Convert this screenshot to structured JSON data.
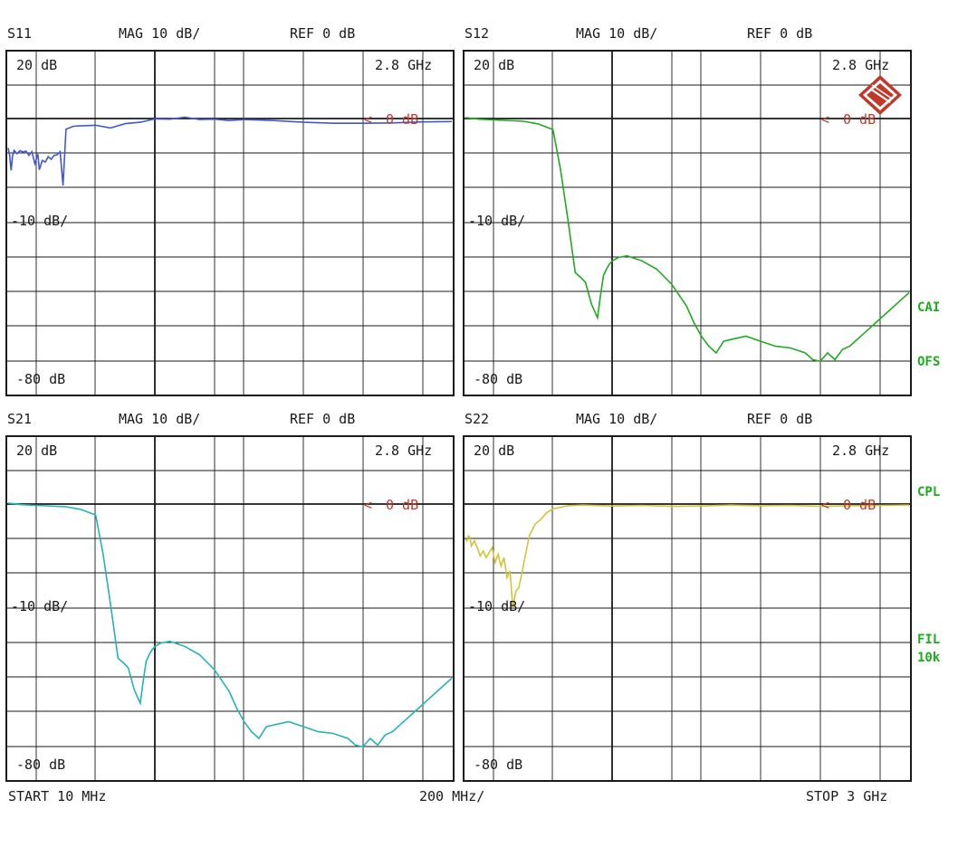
{
  "colors": {
    "background": "#ffffff",
    "grid": "#1a1a1a",
    "reference_marker": "#c0382b",
    "side_annotation": "#1faa1f",
    "logo": "#c0392b"
  },
  "footer": {
    "start": "START  10 MHz",
    "span": "200 MHz/",
    "stop": "STOP 3 GHz"
  },
  "side_annotations": [
    "CAI",
    "OFS",
    "CPL",
    "FIL",
    "10k"
  ],
  "logo": {
    "icon": "rohde-schwarz-logo-icon",
    "text": "RS"
  },
  "chart_data": [
    {
      "type": "line",
      "id": "s11",
      "title": "S11",
      "format": "MAG 10 dB/",
      "reference": "REF 0 dB",
      "top_label": "20 dB",
      "scale_label": "10 dB/",
      "bottom_label": "-80 dB",
      "freq_label": "2.8 GHz",
      "ref_marker": "0 dB",
      "color": "#3f58d2",
      "x_unit": "GHz",
      "xlim": [
        0.01,
        3.0
      ],
      "y_unit": "dB",
      "ylim": [
        -80,
        20
      ],
      "x": [
        0.01,
        0.02,
        0.03,
        0.04,
        0.05,
        0.07,
        0.09,
        0.11,
        0.13,
        0.15,
        0.17,
        0.19,
        0.21,
        0.22,
        0.24,
        0.26,
        0.28,
        0.3,
        0.32,
        0.34,
        0.36,
        0.38,
        0.4,
        0.45,
        0.5,
        0.6,
        0.7,
        0.8,
        0.9,
        1.0,
        1.1,
        1.2,
        1.3,
        1.4,
        1.5,
        1.6,
        1.8,
        2.0,
        2.2,
        2.4,
        2.6,
        2.8,
        3.0
      ],
      "y": [
        -8.8,
        -10.8,
        -15.5,
        -11.0,
        -9.5,
        -10.5,
        -9.6,
        -10.0,
        -9.7,
        -11.0,
        -9.9,
        -13.5,
        -10.6,
        -15.3,
        -12.5,
        -13.0,
        -11.4,
        -12.2,
        -11.0,
        -10.8,
        -9.9,
        -20.0,
        -3.2,
        -2.3,
        -2.2,
        -2.0,
        -2.8,
        -1.5,
        -1.1,
        -0.1,
        -0.2,
        0.4,
        -0.3,
        -0.2,
        -0.6,
        -0.3,
        -0.6,
        -1.1,
        -1.4,
        -1.4,
        -1.3,
        -1.0,
        -0.9
      ]
    },
    {
      "type": "line",
      "id": "s12",
      "title": "S12",
      "format": "MAG 10 dB/",
      "reference": "REF 0 dB",
      "top_label": "20 dB",
      "scale_label": "10 dB/",
      "bottom_label": "-80 dB",
      "freq_label": "2.8 GHz",
      "ref_marker": "0 dB",
      "color": "#1faa1f",
      "x_unit": "GHz",
      "xlim": [
        0.01,
        3.0
      ],
      "y_unit": "dB",
      "ylim": [
        -80,
        20
      ],
      "x": [
        0.01,
        0.1,
        0.2,
        0.4,
        0.5,
        0.6,
        0.65,
        0.7,
        0.75,
        0.8,
        0.82,
        0.86,
        0.9,
        0.92,
        0.94,
        0.96,
        0.98,
        1.0,
        1.04,
        1.1,
        1.2,
        1.3,
        1.4,
        1.5,
        1.55,
        1.6,
        1.65,
        1.7,
        1.75,
        1.8,
        1.9,
        2.0,
        2.1,
        2.2,
        2.3,
        2.35,
        2.4,
        2.45,
        2.5,
        2.55,
        2.6,
        2.7,
        2.8,
        2.9,
        3.0
      ],
      "y": [
        0.3,
        -0.2,
        -0.4,
        -0.8,
        -1.6,
        -3.3,
        -15.0,
        -30.0,
        -46.0,
        -48.0,
        -49.0,
        -55.5,
        -59.5,
        -53.0,
        -47.0,
        -45.0,
        -43.5,
        -42.5,
        -41.5,
        -41.0,
        -42.5,
        -45.0,
        -49.5,
        -56.0,
        -61.0,
        -65.0,
        -68.0,
        -70.0,
        -66.5,
        -66.0,
        -65.0,
        -66.5,
        -68.0,
        -68.5,
        -70.0,
        -72.0,
        -72.5,
        -70.0,
        -72.0,
        -69.0,
        -68.0,
        -64.0,
        -60.0,
        -56.0,
        -52.0
      ]
    },
    {
      "type": "line",
      "id": "s21",
      "title": "S21",
      "format": "MAG 10 dB/",
      "reference": "REF 0 dB",
      "top_label": "20 dB",
      "scale_label": "10 dB/",
      "bottom_label": "-80 dB",
      "freq_label": "2.8 GHz",
      "ref_marker": "0 dB",
      "color": "#22b3b8",
      "x_unit": "GHz",
      "xlim": [
        0.01,
        3.0
      ],
      "y_unit": "dB",
      "ylim": [
        -80,
        20
      ],
      "x": [
        0.01,
        0.1,
        0.2,
        0.4,
        0.5,
        0.6,
        0.65,
        0.7,
        0.75,
        0.8,
        0.82,
        0.86,
        0.9,
        0.92,
        0.94,
        0.96,
        0.98,
        1.0,
        1.04,
        1.1,
        1.2,
        1.3,
        1.4,
        1.5,
        1.55,
        1.6,
        1.65,
        1.7,
        1.75,
        1.8,
        1.9,
        2.0,
        2.1,
        2.2,
        2.3,
        2.35,
        2.4,
        2.45,
        2.5,
        2.55,
        2.6,
        2.7,
        2.8,
        2.9,
        3.0
      ],
      "y": [
        0.3,
        -0.2,
        -0.4,
        -0.8,
        -1.6,
        -3.3,
        -15.0,
        -30.0,
        -46.0,
        -48.0,
        -49.0,
        -55.5,
        -59.5,
        -53.0,
        -47.0,
        -45.0,
        -43.5,
        -42.5,
        -41.5,
        -41.0,
        -42.5,
        -45.0,
        -49.5,
        -56.0,
        -61.0,
        -65.0,
        -68.0,
        -70.0,
        -66.5,
        -66.0,
        -65.0,
        -66.5,
        -68.0,
        -68.5,
        -70.0,
        -72.0,
        -72.5,
        -70.0,
        -72.0,
        -69.0,
        -68.0,
        -64.0,
        -60.0,
        -56.0,
        -52.0
      ]
    },
    {
      "type": "line",
      "id": "s22",
      "title": "S22",
      "format": "MAG 10 dB/",
      "reference": "REF 0 dB",
      "top_label": "20 dB",
      "scale_label": "10 dB/",
      "bottom_label": "-80 dB",
      "freq_label": "2.8 GHz",
      "ref_marker": "0 dB",
      "color": "#d2c33a",
      "x_unit": "GHz",
      "xlim": [
        0.01,
        3.0
      ],
      "y_unit": "dB",
      "ylim": [
        -80,
        20
      ],
      "x": [
        0.01,
        0.02,
        0.03,
        0.04,
        0.05,
        0.07,
        0.09,
        0.11,
        0.13,
        0.15,
        0.17,
        0.19,
        0.21,
        0.23,
        0.25,
        0.27,
        0.29,
        0.31,
        0.33,
        0.35,
        0.37,
        0.4,
        0.44,
        0.48,
        0.52,
        0.56,
        0.6,
        0.65,
        0.7,
        0.8,
        1.0,
        1.2,
        1.4,
        1.6,
        1.8,
        2.0,
        2.2,
        2.4,
        2.6,
        2.8,
        3.0
      ],
      "y": [
        -10.5,
        -11.0,
        -9.5,
        -10.0,
        -12.5,
        -11.0,
        -13.0,
        -15.5,
        -14.0,
        -16.0,
        -14.5,
        -13.0,
        -17.5,
        -15.0,
        -18.5,
        -16.0,
        -22.0,
        -20.0,
        -31.0,
        -26.0,
        -25.0,
        -18.5,
        -9.5,
        -6.0,
        -4.5,
        -2.5,
        -1.4,
        -1.0,
        -0.5,
        -0.3,
        -0.6,
        -0.4,
        -0.7,
        -0.6,
        -0.3,
        -0.5,
        -0.4,
        -0.7,
        -0.5,
        -0.4,
        -0.3
      ]
    }
  ]
}
